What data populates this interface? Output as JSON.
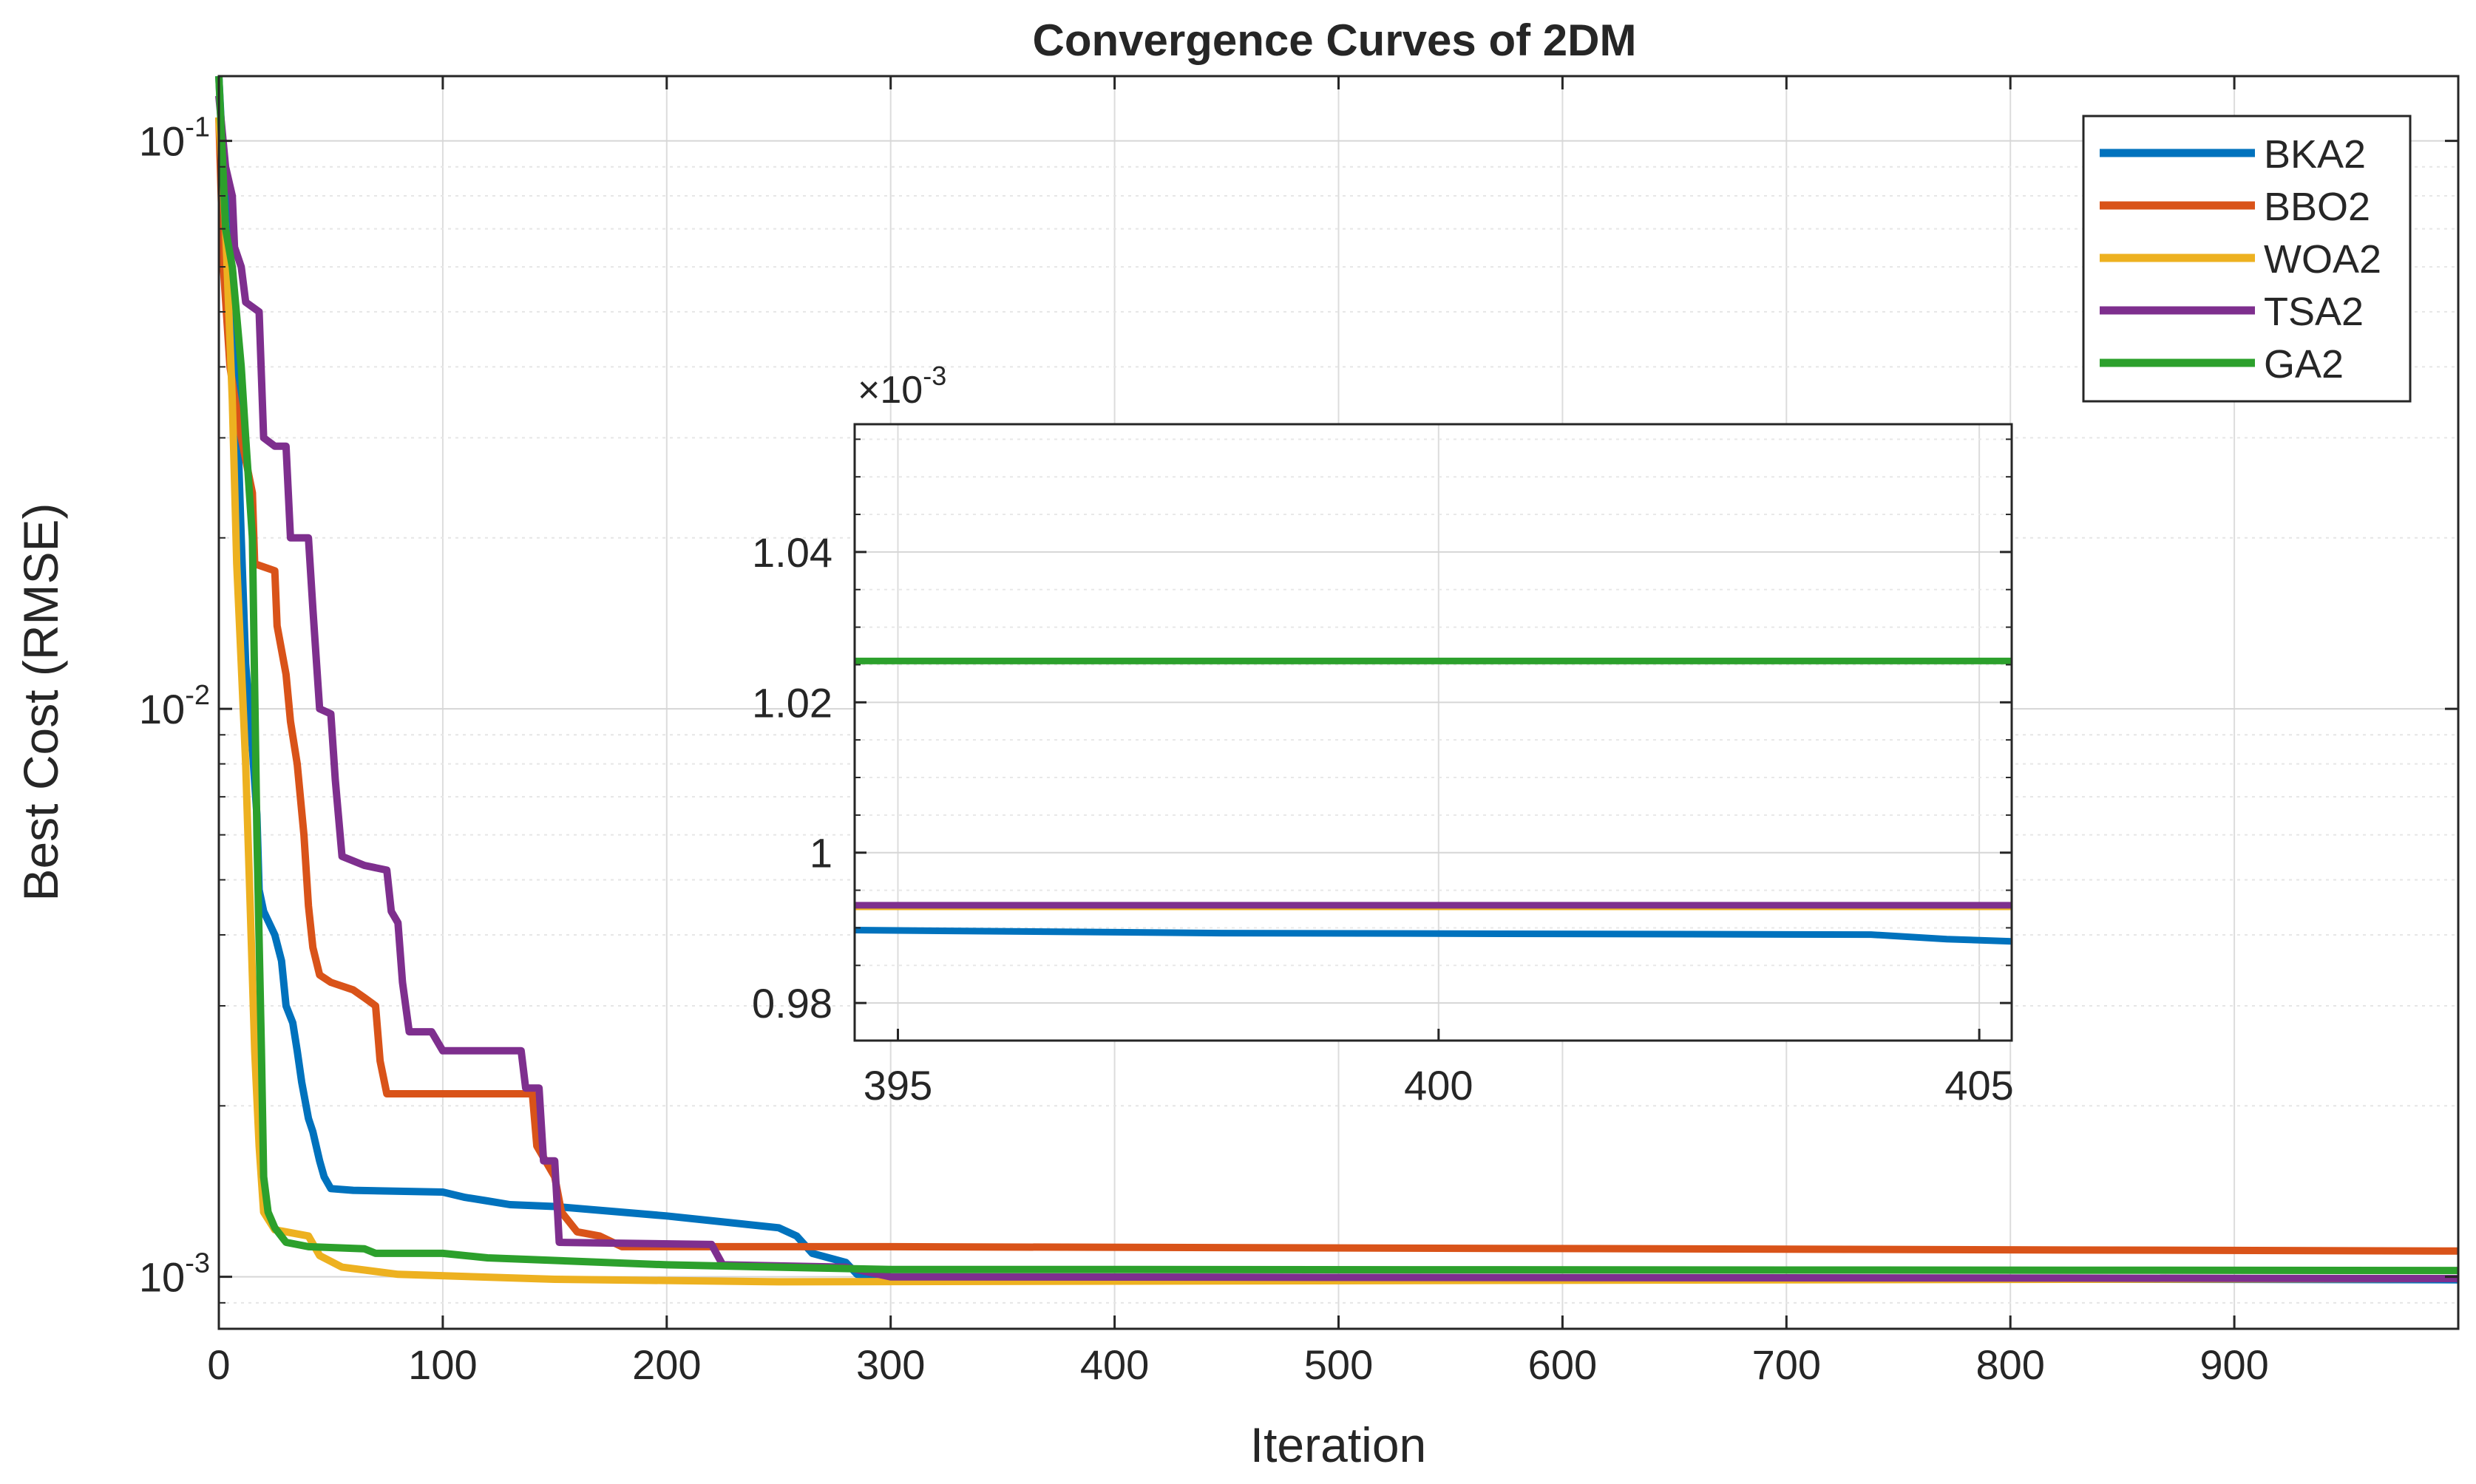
{
  "chart_data": {
    "type": "line",
    "title": "Convergence Curves of 2DM",
    "xlabel": "Iteration",
    "ylabel": "Best Cost (RMSE)",
    "xlim": [
      0,
      1000
    ],
    "ylim": [
      0.00081,
      0.13
    ],
    "yscale": "log",
    "grid": true,
    "x_ticks": [
      0,
      100,
      200,
      300,
      400,
      500,
      600,
      700,
      800,
      900
    ],
    "x_tick_labels": [
      "0",
      "100",
      "200",
      "300",
      "400",
      "500",
      "600",
      "700",
      "800",
      "900"
    ],
    "y_tick_labels": [
      {
        "value": 0.1,
        "base": "10",
        "exp": "-1"
      },
      {
        "value": 0.01,
        "base": "10",
        "exp": "-2"
      },
      {
        "value": 0.001,
        "base": "10",
        "exp": "-3"
      }
    ],
    "legend": {
      "position": "top-right",
      "entries": [
        "BKA2",
        "BBO2",
        "WOA2",
        "TSA2",
        "GA2"
      ]
    },
    "series": [
      {
        "name": "BKA2",
        "color": "#0072BD",
        "points": [
          [
            0,
            0.13
          ],
          [
            2,
            0.09
          ],
          [
            5,
            0.06
          ],
          [
            8,
            0.035
          ],
          [
            10,
            0.02
          ],
          [
            12,
            0.012
          ],
          [
            15,
            0.0085
          ],
          [
            17,
            0.0065
          ],
          [
            18,
            0.0048
          ],
          [
            20,
            0.0044
          ],
          [
            25,
            0.004
          ],
          [
            28,
            0.0036
          ],
          [
            30,
            0.003
          ],
          [
            33,
            0.0028
          ],
          [
            35,
            0.0025
          ],
          [
            37,
            0.0022
          ],
          [
            40,
            0.0019
          ],
          [
            42,
            0.0018
          ],
          [
            45,
            0.0016
          ],
          [
            47,
            0.0015
          ],
          [
            50,
            0.00143
          ],
          [
            60,
            0.00142
          ],
          [
            100,
            0.00141
          ],
          [
            110,
            0.00138
          ],
          [
            120,
            0.00136
          ],
          [
            130,
            0.00134
          ],
          [
            150,
            0.00133
          ],
          [
            200,
            0.00128
          ],
          [
            250,
            0.00122
          ],
          [
            258,
            0.00118
          ],
          [
            265,
            0.0011
          ],
          [
            280,
            0.00106
          ],
          [
            285,
            0.00101
          ],
          [
            300,
            0.001
          ],
          [
            1000,
            0.000988
          ]
        ]
      },
      {
        "name": "BBO2",
        "color": "#D95319",
        "points": [
          [
            0,
            0.11
          ],
          [
            2,
            0.06
          ],
          [
            5,
            0.04
          ],
          [
            10,
            0.03
          ],
          [
            15,
            0.024
          ],
          [
            16,
            0.018
          ],
          [
            25,
            0.0175
          ],
          [
            26,
            0.014
          ],
          [
            30,
            0.0115
          ],
          [
            32,
            0.0095
          ],
          [
            35,
            0.008
          ],
          [
            38,
            0.006
          ],
          [
            40,
            0.0045
          ],
          [
            42,
            0.0038
          ],
          [
            45,
            0.0034
          ],
          [
            50,
            0.0033
          ],
          [
            60,
            0.0032
          ],
          [
            65,
            0.0031
          ],
          [
            70,
            0.003
          ],
          [
            72,
            0.0024
          ],
          [
            75,
            0.0021
          ],
          [
            140,
            0.0021
          ],
          [
            142,
            0.0017
          ],
          [
            150,
            0.0015
          ],
          [
            153,
            0.0013
          ],
          [
            160,
            0.0012
          ],
          [
            170,
            0.00118
          ],
          [
            180,
            0.00113
          ],
          [
            300,
            0.00113
          ],
          [
            1000,
            0.00111
          ]
        ]
      },
      {
        "name": "WOA2",
        "color": "#EDB120",
        "points": [
          [
            0,
            0.11
          ],
          [
            3,
            0.07
          ],
          [
            6,
            0.035
          ],
          [
            8,
            0.018
          ],
          [
            10,
            0.012
          ],
          [
            12,
            0.008
          ],
          [
            14,
            0.0045
          ],
          [
            16,
            0.0025
          ],
          [
            18,
            0.0017
          ],
          [
            20,
            0.0013
          ],
          [
            25,
            0.00121
          ],
          [
            30,
            0.0012
          ],
          [
            40,
            0.00118
          ],
          [
            45,
            0.00109
          ],
          [
            55,
            0.00104
          ],
          [
            80,
            0.00101
          ],
          [
            150,
            0.00099
          ],
          [
            250,
            0.00098
          ],
          [
            1000,
            0.000993
          ]
        ]
      },
      {
        "name": "TSA2",
        "color": "#7E2F8E",
        "points": [
          [
            0,
            0.12
          ],
          [
            3,
            0.09
          ],
          [
            6,
            0.08
          ],
          [
            7,
            0.065
          ],
          [
            10,
            0.06
          ],
          [
            12,
            0.052
          ],
          [
            18,
            0.05
          ],
          [
            20,
            0.03
          ],
          [
            25,
            0.029
          ],
          [
            30,
            0.029
          ],
          [
            32,
            0.02
          ],
          [
            40,
            0.02
          ],
          [
            42,
            0.015
          ],
          [
            45,
            0.01
          ],
          [
            50,
            0.0098
          ],
          [
            52,
            0.0075
          ],
          [
            55,
            0.0055
          ],
          [
            65,
            0.0053
          ],
          [
            75,
            0.0052
          ],
          [
            77,
            0.0044
          ],
          [
            80,
            0.0042
          ],
          [
            82,
            0.0033
          ],
          [
            85,
            0.0027
          ],
          [
            95,
            0.0027
          ],
          [
            100,
            0.0025
          ],
          [
            135,
            0.0025
          ],
          [
            137,
            0.00215
          ],
          [
            143,
            0.00215
          ],
          [
            145,
            0.0016
          ],
          [
            150,
            0.0016
          ],
          [
            152,
            0.00115
          ],
          [
            220,
            0.00114
          ],
          [
            225,
            0.00105
          ],
          [
            280,
            0.00104
          ],
          [
            300,
            0.001
          ],
          [
            1000,
            0.000993
          ]
        ]
      },
      {
        "name": "GA2",
        "color": "#2CA02C",
        "points": [
          [
            0,
            0.13
          ],
          [
            3,
            0.07
          ],
          [
            6,
            0.06
          ],
          [
            10,
            0.04
          ],
          [
            12,
            0.03
          ],
          [
            15,
            0.02
          ],
          [
            17,
            0.006
          ],
          [
            19,
            0.0025
          ],
          [
            20,
            0.0015
          ],
          [
            22,
            0.0013
          ],
          [
            25,
            0.00122
          ],
          [
            30,
            0.00115
          ],
          [
            40,
            0.00113
          ],
          [
            65,
            0.00112
          ],
          [
            70,
            0.0011
          ],
          [
            100,
            0.0011
          ],
          [
            120,
            0.00108
          ],
          [
            200,
            0.00105
          ],
          [
            300,
            0.00103
          ],
          [
            400,
            0.00103
          ],
          [
            1000,
            0.001026
          ]
        ]
      }
    ],
    "inset": {
      "type": "line",
      "exponent_label": "×10",
      "exponent_power": "-3",
      "xlim": [
        394.6,
        405.3
      ],
      "ylim": [
        0.975,
        1.057
      ],
      "x_ticks": [
        395,
        400,
        405
      ],
      "x_tick_labels": [
        "395",
        "400",
        "405"
      ],
      "y_ticks": [
        0.98,
        1.0,
        1.02,
        1.04
      ],
      "y_tick_labels": [
        "0.98",
        "1",
        "1.02",
        "1.04"
      ],
      "series": [
        {
          "name": "GA2",
          "color": "#2CA02C",
          "points": [
            [
              394.6,
              1.0255
            ],
            [
              405.3,
              1.0255
            ]
          ]
        },
        {
          "name": "WOA2",
          "color": "#EDB120",
          "points": [
            [
              394.6,
              0.9928
            ],
            [
              405.3,
              0.9928
            ]
          ]
        },
        {
          "name": "TSA2",
          "color": "#7E2F8E",
          "points": [
            [
              394.6,
              0.993
            ],
            [
              405.3,
              0.993
            ]
          ]
        },
        {
          "name": "BKA2",
          "color": "#0072BD",
          "points": [
            [
              394.6,
              0.9897
            ],
            [
              398,
              0.9893
            ],
            [
              404,
              0.9891
            ],
            [
              404.7,
              0.9885
            ],
            [
              405.3,
              0.9882
            ]
          ]
        }
      ]
    }
  }
}
